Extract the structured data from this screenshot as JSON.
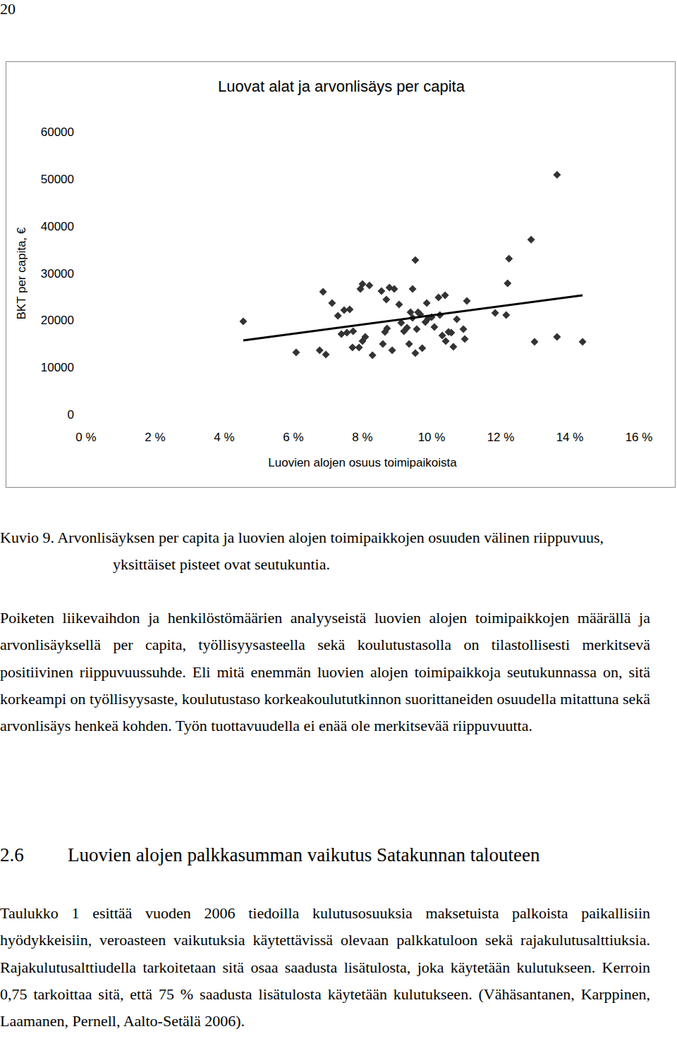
{
  "page_number": "20",
  "chart_data": {
    "type": "scatter",
    "title": "Luovat alat ja arvonlisäys per capita",
    "x_label": "Luovien alojen osuus toimipaikoista",
    "y_label": "BKT per capita, €",
    "xlim": [
      0,
      16
    ],
    "xticks": [
      {
        "value": 0,
        "label": "0 %"
      },
      {
        "value": 2,
        "label": "2 %"
      },
      {
        "value": 4,
        "label": "4 %"
      },
      {
        "value": 6,
        "label": "6 %"
      },
      {
        "value": 8,
        "label": "8 %"
      },
      {
        "value": 10,
        "label": "10 %"
      },
      {
        "value": 12,
        "label": "12 %"
      },
      {
        "value": 14,
        "label": "14 %"
      },
      {
        "value": 16,
        "label": "16 %"
      }
    ],
    "ylim": [
      0,
      60000
    ],
    "yticks": [
      0,
      10000,
      20000,
      30000,
      40000,
      50000,
      60000
    ],
    "grid": false,
    "series": [
      {
        "type": "scatter",
        "marker": "diamond",
        "color": "#333333",
        "x": [
          4.55,
          6.08,
          6.76,
          6.86,
          6.94,
          7.12,
          7.29,
          7.39,
          7.47,
          7.55,
          7.63,
          7.71,
          7.73,
          7.9,
          7.94,
          8.0,
          8.0,
          8.08,
          8.2,
          8.29,
          8.55,
          8.59,
          8.65,
          8.69,
          8.71,
          8.78,
          8.86,
          8.92,
          9.06,
          9.12,
          9.2,
          9.29,
          9.35,
          9.39,
          9.45,
          9.45,
          9.53,
          9.53,
          9.57,
          9.61,
          9.67,
          9.73,
          9.82,
          9.86,
          9.9,
          10.0,
          10.08,
          10.2,
          10.24,
          10.31,
          10.39,
          10.41,
          10.49,
          10.57,
          10.63,
          10.73,
          10.92,
          10.96,
          11.02,
          11.84,
          12.16,
          12.2,
          12.24,
          12.88,
          12.98,
          13.63,
          13.63,
          14.37
        ],
        "values": [
          19750,
          13160,
          13610,
          26030,
          12720,
          23640,
          20940,
          17050,
          22140,
          17350,
          22290,
          14210,
          17650,
          14210,
          26630,
          27680,
          15560,
          16460,
          27380,
          12570,
          26180,
          14960,
          17500,
          24390,
          18250,
          26930,
          13610,
          26630,
          23340,
          19450,
          17650,
          18400,
          14960,
          21690,
          26630,
          20500,
          13020,
          32760,
          18100,
          21690,
          21240,
          14060,
          19600,
          23640,
          20350,
          20650,
          18550,
          24840,
          21090,
          16760,
          25280,
          15560,
          17500,
          17350,
          14360,
          20200,
          18100,
          16010,
          24090,
          21540,
          21090,
          27830,
          33060,
          37100,
          15410,
          50860,
          16460,
          15410
        ]
      },
      {
        "type": "line",
        "line_style": "solid",
        "color": "#000000",
        "x": [
          4.55,
          14.37
        ],
        "values": [
          15700,
          25300
        ]
      }
    ]
  },
  "caption": "Kuvio 9. Arvonlisäyksen per capita ja luovien alojen toimipaikkojen osuuden välinen riippuvuus, yksittäiset pisteet ovat seutukuntia.",
  "paragraphs": [
    "Poiketen liikevaihdon ja henkilöstömäärien analyyseistä luovien alojen toimipaikkojen määrällä ja arvonlisäyksellä per capita, työllisyysasteella sekä koulutustasolla on tilastollisesti merkitsevä positiivinen riippuvuussuhde. Eli mitä enemmän luovien alojen toimipaikkoja seutukunnassa on, sitä korkeampi on työllisyysaste, koulutustaso korkeakoulututkinnon suorittaneiden osuudella mitattuna sekä arvonlisäys henkeä kohden. Työn tuottavuudella ei enää ole merkitsevää riippuvuutta.",
    "Taulukko 1 esittää vuoden 2006 tiedoilla kulutusosuuksia maksetuista palkoista paikallisiin hyödykkeisiin, veroasteen vaikutuksia käytettävissä olevaan palkkatuloon sekä rajakulutusalttiuksia. Rajakulutusalttiudella tarkoitetaan sitä osaa saadusta lisätulosta, joka käytetään kulutukseen. Kerroin 0,75 tarkoittaa sitä, että 75 % saadusta lisätulosta käytetään kulutukseen. (Vähäsantanen, Karppinen, Laamanen, Pernell, Aalto-Setälä 2006)."
  ],
  "heading": {
    "number": "2.6",
    "text": "Luovien alojen palkkasumman vaikutus Satakunnan talouteen"
  }
}
